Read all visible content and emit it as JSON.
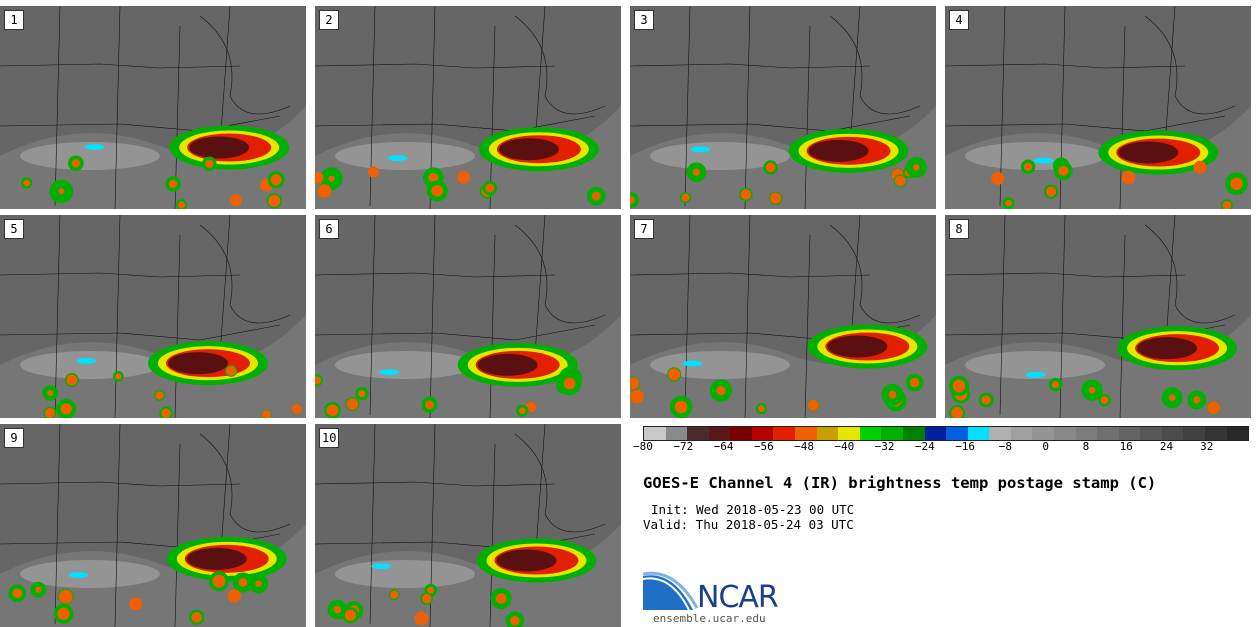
{
  "panels": [
    {
      "label": "1"
    },
    {
      "label": "2"
    },
    {
      "label": "3"
    },
    {
      "label": "4"
    },
    {
      "label": "5"
    },
    {
      "label": "6"
    },
    {
      "label": "7"
    },
    {
      "label": "8"
    },
    {
      "label": "9"
    },
    {
      "label": "10"
    }
  ],
  "colorbar": {
    "colors": [
      "#c8c8c8",
      "#8a8a8a",
      "#4d2b2b",
      "#5a1818",
      "#7a0000",
      "#b80000",
      "#e22000",
      "#f06000",
      "#c8a000",
      "#e6e600",
      "#00d000",
      "#00b000",
      "#008000",
      "#0020a0",
      "#0060e0",
      "#00e0ff",
      "#b0b0b0",
      "#a0a0a0",
      "#949494",
      "#888888",
      "#7c7c7c",
      "#707070",
      "#646464",
      "#585858",
      "#4c4c4c",
      "#404040",
      "#343434",
      "#282828"
    ],
    "tick_labels": [
      "−80",
      "−72",
      "−64",
      "−56",
      "−48",
      "−40",
      "−32",
      "−24",
      "−16",
      "−8",
      "0",
      "8",
      "16",
      "24",
      "32"
    ],
    "min": -80,
    "max": 40
  },
  "title": "GOES-E Channel 4 (IR) brightness temp postage stamp (C)",
  "init": "Init: Wed 2018-05-23 00 UTC",
  "valid": "Valid: Thu 2018-05-24 03 UTC",
  "logo": {
    "text": "NCAR",
    "url": "ensemble.ucar.edu"
  }
}
